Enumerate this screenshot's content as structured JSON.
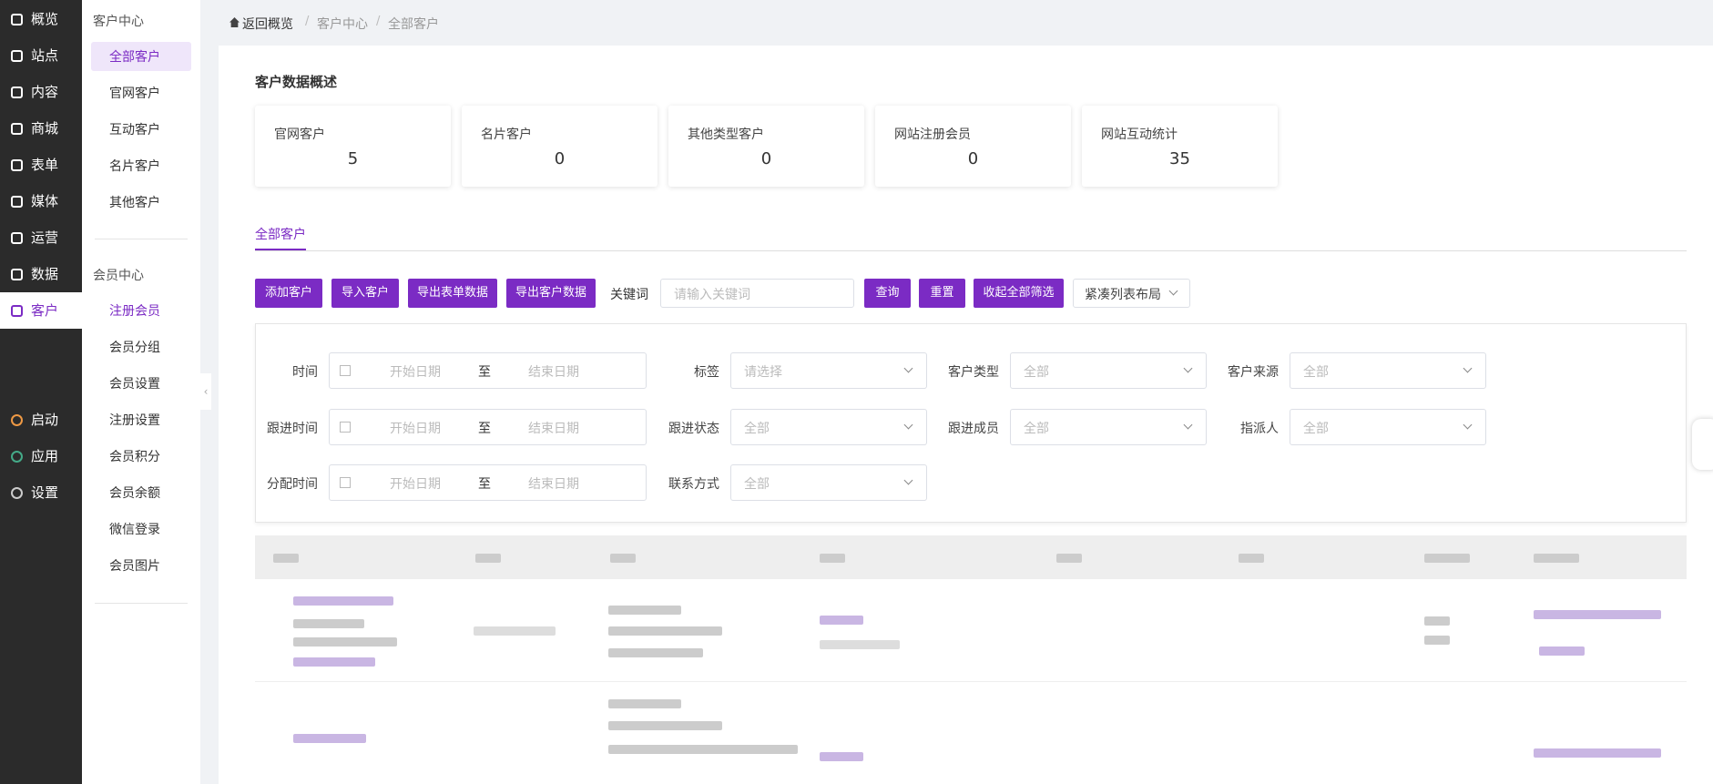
{
  "sidebar": {
    "items": [
      "概览",
      "站点",
      "内容",
      "商城",
      "表单",
      "媒体",
      "运营",
      "数据",
      "客户"
    ],
    "bottom": [
      "启动",
      "应用",
      "设置"
    ]
  },
  "submenu": {
    "groups": [
      {
        "title": "客户中心",
        "items": [
          "全部客户",
          "官网客户",
          "互动客户",
          "名片客户",
          "其他客户"
        ]
      },
      {
        "title": "会员中心",
        "items": [
          "注册会员",
          "会员分组",
          "会员设置",
          "注册设置",
          "会员积分",
          "会员余额",
          "微信登录",
          "会员图片"
        ]
      }
    ]
  },
  "breadcrumb": [
    "返回概览",
    "客户中心",
    "全部客户"
  ],
  "overview": {
    "title": "客户数据概述",
    "cards": [
      {
        "label": "官网客户",
        "value": 5
      },
      {
        "label": "名片客户",
        "value": 0
      },
      {
        "label": "其他类型客户",
        "value": 0
      },
      {
        "label": "网站注册会员",
        "value": 0
      },
      {
        "label": "网站互动统计",
        "value": 35
      }
    ]
  },
  "tab": "全部客户",
  "toolbar": {
    "buttons": [
      "添加客户",
      "导入客户",
      "导出表单数据",
      "导出客户数据"
    ],
    "keyword_label": "关键词",
    "keyword_placeholder": "请输入关键词",
    "actions": [
      "查询",
      "重置",
      "收起全部筛选"
    ],
    "layout": "紧凑列表布局"
  },
  "filters": [
    [
      {
        "label": "时间",
        "start": "开始日期",
        "sep": "至",
        "end": "结束日期"
      },
      {
        "label": "标签",
        "placeholder": "请选择"
      },
      {
        "label": "客户类型",
        "placeholder": "全部"
      },
      {
        "label": "客户来源",
        "placeholder": "全部"
      }
    ],
    [
      {
        "label": "跟进时间",
        "start": "开始日期",
        "sep": "至",
        "end": "结束日期"
      },
      {
        "label": "跟进状态",
        "placeholder": "全部"
      },
      {
        "label": "跟进成员",
        "placeholder": "全部"
      },
      {
        "label": "指派人",
        "placeholder": "全部"
      }
    ],
    [
      {
        "label": "分配时间",
        "start": "开始日期",
        "sep": "至",
        "end": "结束日期"
      },
      {
        "label": "联系方式",
        "placeholder": "全部"
      }
    ]
  ]
}
